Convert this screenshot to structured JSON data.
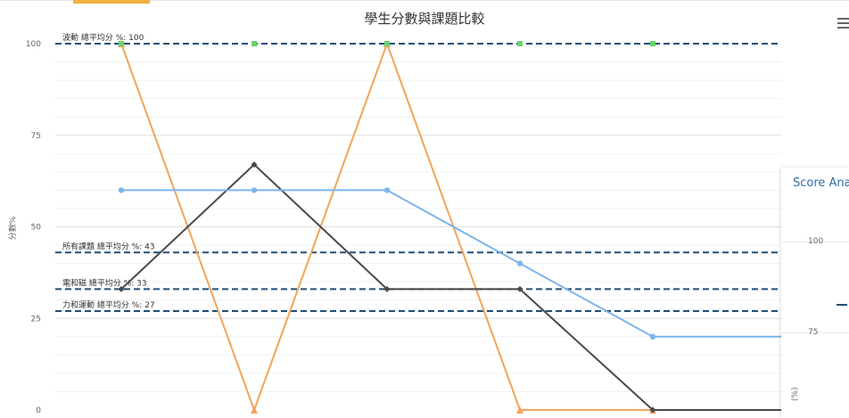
{
  "chart_data": {
    "type": "line",
    "title": "學生分數與課題比較",
    "ylabel": "分數%",
    "ylim": [
      0,
      100
    ],
    "yticks": [
      "0",
      "25",
      "50",
      "75",
      "100"
    ],
    "categories": [
      "",
      "",
      "",
      "",
      "",
      ""
    ],
    "series": [
      {
        "name": "",
        "color": "#f2a45b",
        "values": [
          100,
          0,
          100,
          0,
          0,
          0
        ]
      },
      {
        "name": "",
        "color": "#4a4a4a",
        "values": [
          33,
          67,
          33,
          33,
          0,
          0
        ]
      },
      {
        "name": "",
        "color": "#7cb5ec",
        "values": [
          60,
          60,
          60,
          40,
          20,
          20
        ]
      }
    ],
    "top_markers": {
      "color": "#6ad36a",
      "values": [
        100,
        100,
        100,
        100,
        100,
        100
      ]
    },
    "plot_lines": [
      {
        "label": "波動 總平均分 %: 100",
        "value": 100
      },
      {
        "label": "所有課題 總平均分 %: 43",
        "value": 43
      },
      {
        "label": "電和磁 總平均分 %: 33",
        "value": 33
      },
      {
        "label": "力和運動 總平均分 %: 27",
        "value": 27
      }
    ],
    "plot_line_color": "#1f4e79"
  },
  "side_chart": {
    "title": "Score Ana",
    "ticks": [
      "100",
      "75"
    ],
    "ylabel": "(%)"
  },
  "colors": {
    "accent_tab": "#f0b13c"
  },
  "icons": {
    "menu": "hamburger-menu-icon"
  }
}
